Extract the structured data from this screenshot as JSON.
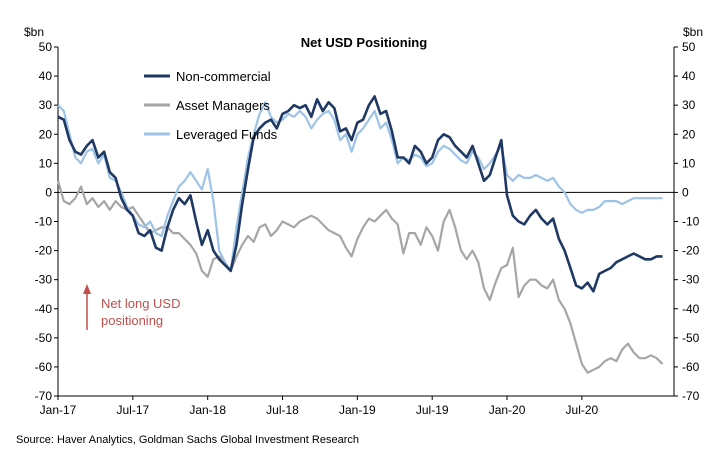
{
  "chart_data": {
    "type": "line",
    "title": "Net USD Positioning",
    "y_unit_left": "$bn",
    "y_unit_right": "$bn",
    "ylim": [
      -70,
      50
    ],
    "y_ticks": [
      50,
      40,
      30,
      20,
      10,
      0,
      -10,
      -20,
      -30,
      -40,
      -50,
      -60,
      -70
    ],
    "x_ticks": [
      "Jan-17",
      "Jul-17",
      "Jan-18",
      "Jul-18",
      "Jan-19",
      "Jul-19",
      "Jan-20",
      "Jul-20"
    ],
    "x_tick_positions": [
      0,
      26,
      52,
      78,
      104,
      130,
      156,
      182
    ],
    "x_unit": "weeks since Jan-17",
    "x_max": 214,
    "annotation": {
      "text_line1": "Net long USD",
      "text_line2": "positioning",
      "color": "#c0504d"
    },
    "source": "Source: Haver Analytics, Goldman Sachs Global Investment Research",
    "series": [
      {
        "name": "Non-commercial",
        "color": "#1f3864",
        "x": [
          0,
          2,
          4,
          6,
          8,
          10,
          12,
          14,
          16,
          18,
          20,
          22,
          24,
          26,
          28,
          30,
          32,
          34,
          36,
          38,
          40,
          42,
          44,
          46,
          48,
          50,
          52,
          54,
          56,
          58,
          60,
          62,
          64,
          66,
          68,
          70,
          72,
          74,
          76,
          78,
          80,
          82,
          84,
          86,
          88,
          90,
          92,
          94,
          96,
          98,
          100,
          102,
          104,
          106,
          108,
          110,
          112,
          114,
          116,
          118,
          120,
          122,
          124,
          126,
          128,
          130,
          132,
          134,
          136,
          138,
          140,
          142,
          144,
          146,
          148,
          150,
          152,
          154,
          156,
          158,
          160,
          162,
          164,
          166,
          168,
          170,
          172,
          174,
          176,
          178,
          180,
          182,
          184,
          186,
          188,
          190,
          192,
          194,
          196,
          198,
          200,
          202,
          204,
          206,
          208,
          210
        ],
        "y": [
          26,
          25,
          18,
          14,
          13,
          16,
          18,
          12,
          14,
          7,
          5,
          -2,
          -6,
          -8,
          -14,
          -15,
          -13,
          -19,
          -20,
          -12,
          -6,
          -2,
          -4,
          -1,
          -10,
          -18,
          -13,
          -20,
          -23,
          -25,
          -27,
          -18,
          -4,
          8,
          19,
          22,
          24,
          25,
          22,
          27,
          28,
          30,
          29,
          30,
          26,
          32,
          28,
          31,
          29,
          21,
          22,
          18,
          24,
          25,
          30,
          33,
          27,
          28,
          21,
          12,
          12,
          10,
          16,
          14,
          10,
          12,
          18,
          20,
          19,
          16,
          14,
          12,
          16,
          10,
          4,
          6,
          12,
          18,
          -1,
          -8,
          -10,
          -11,
          -8,
          -6,
          -9,
          -11,
          -9,
          -16,
          -20,
          -26,
          -32,
          -33,
          -31,
          -34,
          -28,
          -27,
          -26,
          -24,
          -23,
          -22,
          -21,
          -22,
          -23,
          -23,
          -22,
          -22
        ],
        "note": "approximate readings from plot"
      },
      {
        "name": "Asset Managers",
        "color": "#a6a6a6",
        "x": [
          0,
          2,
          4,
          6,
          8,
          10,
          12,
          14,
          16,
          18,
          20,
          22,
          24,
          26,
          28,
          30,
          32,
          34,
          36,
          38,
          40,
          42,
          44,
          46,
          48,
          50,
          52,
          54,
          56,
          58,
          60,
          62,
          64,
          66,
          68,
          70,
          72,
          74,
          76,
          78,
          80,
          82,
          84,
          86,
          88,
          90,
          92,
          94,
          96,
          98,
          100,
          102,
          104,
          106,
          108,
          110,
          112,
          114,
          116,
          118,
          120,
          122,
          124,
          126,
          128,
          130,
          132,
          134,
          136,
          138,
          140,
          142,
          144,
          146,
          148,
          150,
          152,
          154,
          156,
          158,
          160,
          162,
          164,
          166,
          168,
          170,
          172,
          174,
          176,
          178,
          180,
          182,
          184,
          186,
          188,
          190,
          192,
          194,
          196,
          198,
          200,
          202,
          204,
          206,
          208,
          210
        ],
        "y": [
          4,
          -3,
          -4,
          -2,
          2,
          -4,
          -2,
          -5,
          -3,
          -6,
          -3,
          -5,
          -6,
          -5,
          -8,
          -11,
          -14,
          -13,
          -12,
          -12,
          -14,
          -14,
          -16,
          -18,
          -21,
          -27,
          -29,
          -23,
          -22,
          -24,
          -27,
          -22,
          -18,
          -15,
          -17,
          -12,
          -11,
          -15,
          -13,
          -10,
          -11,
          -12,
          -10,
          -9,
          -8,
          -9,
          -11,
          -13,
          -14,
          -15,
          -19,
          -22,
          -16,
          -12,
          -9,
          -10,
          -8,
          -6,
          -9,
          -11,
          -21,
          -14,
          -14,
          -18,
          -12,
          -15,
          -20,
          -10,
          -6,
          -12,
          -20,
          -23,
          -20,
          -24,
          -33,
          -37,
          -31,
          -26,
          -25,
          -19,
          -36,
          -32,
          -30,
          -30,
          -32,
          -33,
          -30,
          -37,
          -40,
          -45,
          -52,
          -59,
          -62,
          -61,
          -60,
          -58,
          -57,
          -58,
          -54,
          -52,
          -55,
          -57,
          -57,
          -56,
          -57,
          -59
        ],
        "note": "approximate readings from plot"
      },
      {
        "name": "Leveraged Funds",
        "color": "#9dc3e6",
        "x": [
          0,
          2,
          4,
          6,
          8,
          10,
          12,
          14,
          16,
          18,
          20,
          22,
          24,
          26,
          28,
          30,
          32,
          34,
          36,
          38,
          40,
          42,
          44,
          46,
          48,
          50,
          52,
          54,
          56,
          58,
          60,
          62,
          64,
          66,
          68,
          70,
          72,
          74,
          76,
          78,
          80,
          82,
          84,
          86,
          88,
          90,
          92,
          94,
          96,
          98,
          100,
          102,
          104,
          106,
          108,
          110,
          112,
          114,
          116,
          118,
          120,
          122,
          124,
          126,
          128,
          130,
          132,
          134,
          136,
          138,
          140,
          142,
          144,
          146,
          148,
          150,
          152,
          154,
          156,
          158,
          160,
          162,
          164,
          166,
          168,
          170,
          172,
          174,
          176,
          178,
          180,
          182,
          184,
          186,
          188,
          190,
          192,
          194,
          196,
          198,
          200,
          202,
          204,
          206,
          208,
          210
        ],
        "y": [
          30,
          28,
          20,
          12,
          10,
          14,
          15,
          10,
          13,
          5,
          4,
          0,
          -5,
          -8,
          -11,
          -12,
          -10,
          -14,
          -15,
          -8,
          -3,
          2,
          4,
          7,
          4,
          1,
          8,
          -3,
          -20,
          -24,
          -27,
          -12,
          0,
          12,
          20,
          27,
          31,
          26,
          24,
          25,
          27,
          26,
          28,
          26,
          22,
          25,
          27,
          28,
          25,
          18,
          20,
          14,
          20,
          22,
          25,
          28,
          22,
          24,
          18,
          10,
          12,
          11,
          13,
          12,
          9,
          10,
          14,
          16,
          15,
          13,
          11,
          10,
          14,
          12,
          8,
          10,
          13,
          16,
          6,
          4,
          6,
          5,
          5,
          6,
          5,
          4,
          5,
          2,
          0,
          -4,
          -6,
          -7,
          -6,
          -6,
          -5,
          -3,
          -3,
          -3,
          -4,
          -3,
          -2,
          -2,
          -2,
          -2,
          -2,
          -2
        ],
        "note": "approximate readings from plot"
      }
    ]
  }
}
